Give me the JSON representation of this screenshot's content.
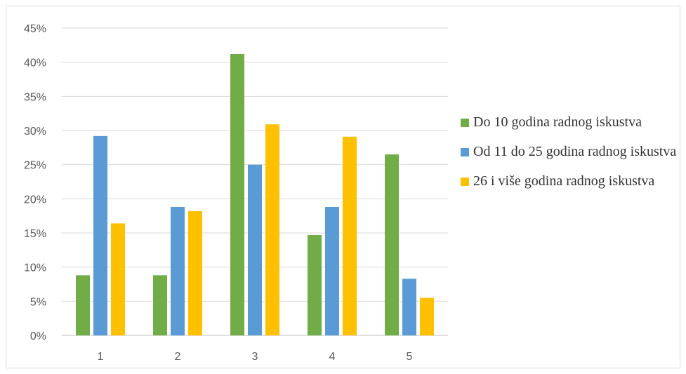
{
  "chart_data": {
    "type": "bar",
    "categories": [
      "1",
      "2",
      "3",
      "4",
      "5"
    ],
    "series": [
      {
        "name": "Do 10 godina radnog iskustva",
        "color": "#70ad47",
        "values": [
          8.8,
          8.8,
          41.2,
          14.7,
          26.5
        ]
      },
      {
        "name": "Od 11 do 25 godina radnog iskustva",
        "color": "#5b9bd5",
        "values": [
          29.2,
          18.8,
          25.0,
          18.8,
          8.3
        ]
      },
      {
        "name": "26 i više godina radnog iskustva",
        "color": "#ffc000",
        "values": [
          16.4,
          18.2,
          30.9,
          29.1,
          5.5
        ]
      }
    ],
    "yticks": [
      "0%",
      "5%",
      "10%",
      "15%",
      "20%",
      "25%",
      "30%",
      "35%",
      "40%",
      "45%"
    ],
    "ylim": [
      0,
      45
    ],
    "grid": true,
    "legend_position": "right",
    "title": "",
    "xlabel": "",
    "ylabel": ""
  }
}
